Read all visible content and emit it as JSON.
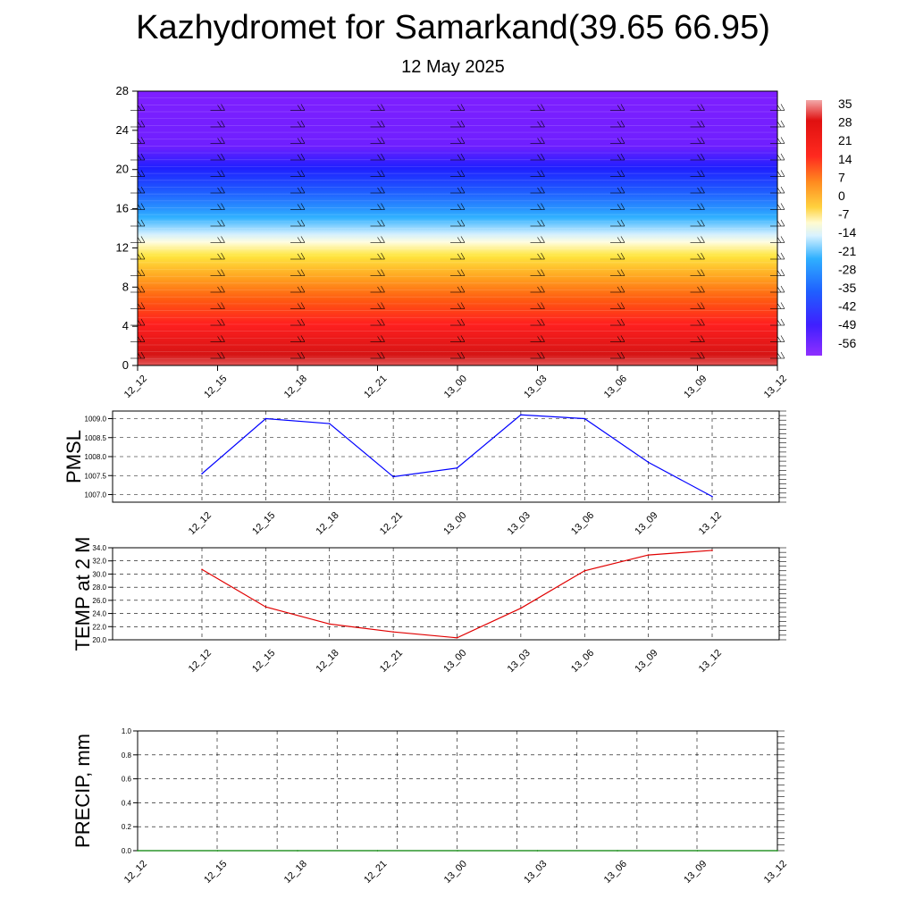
{
  "header": {
    "title": "Kazhydromet for Samarkand(39.65 66.95)",
    "subtitle": "12 May 2025"
  },
  "chart_data": [
    {
      "type": "heatmap",
      "description_field": "temperature cross-section with wind barbs",
      "x_categories": [
        "12_12",
        "12_15",
        "12_18",
        "12_21",
        "13_00",
        "13_03",
        "13_06",
        "13_09",
        "13_12"
      ],
      "y_ticks": [
        "0",
        "4",
        "8",
        "12",
        "16",
        "20",
        "24",
        "28"
      ],
      "ylim": [
        0,
        28
      ],
      "colorbar_labels": [
        "35",
        "28",
        "21",
        "14",
        "7",
        "0",
        "-7",
        "-14",
        "-21",
        "-28",
        "-35",
        "-42",
        "-49",
        "-56"
      ],
      "colorbar_range": [
        -56,
        35
      ],
      "colors": {
        "violet": "#7f1fff",
        "blue": "#1f1fff",
        "lightblue": "#2fb0ff",
        "white": "#f4f4f4",
        "yellow": "#ffe63f",
        "orange": "#ffa21f",
        "red": "#ff1f1f",
        "darkred": "#d80d0d",
        "pink": "#f49a9a"
      }
    },
    {
      "type": "line",
      "ylabel": "PMSL",
      "x_categories": [
        "12_12",
        "12_15",
        "12_18",
        "12_21",
        "13_00",
        "13_03",
        "13_06",
        "13_09",
        "13_12"
      ],
      "y_ticks": [
        "1007.0",
        "1007.5",
        "1008.0",
        "1008.5",
        "1009.0"
      ],
      "ylim": [
        1006.8,
        1009.2
      ],
      "values": [
        1007.55,
        1009.0,
        1008.87,
        1007.47,
        1007.7,
        1009.1,
        1009.0,
        1007.85,
        1006.95
      ],
      "line_color": "#0000ff"
    },
    {
      "type": "line",
      "ylabel": "TEMP at 2 M",
      "x_categories": [
        "12_12",
        "12_15",
        "12_18",
        "12_21",
        "13_00",
        "13_03",
        "13_06",
        "13_09",
        "13_12"
      ],
      "y_ticks": [
        "20.0",
        "22.0",
        "24.0",
        "26.0",
        "28.0",
        "30.0",
        "32.0",
        "34.0"
      ],
      "ylim": [
        20.0,
        34.0
      ],
      "values": [
        30.7,
        25.0,
        22.4,
        21.2,
        20.3,
        24.8,
        30.5,
        32.9,
        33.6
      ],
      "line_color": "#e00000"
    },
    {
      "type": "line",
      "ylabel": "PRECIP, mm",
      "x_categories": [
        "12_12",
        "12_15",
        "12_18",
        "12_21",
        "13_00",
        "13_03",
        "13_06",
        "13_09",
        "13_12"
      ],
      "y_ticks": [
        "0.0",
        "0.2",
        "0.4",
        "0.6",
        "0.8",
        "1.0"
      ],
      "ylim": [
        0.0,
        1.0
      ],
      "values": [
        0,
        0,
        0,
        0,
        0,
        0,
        0,
        0,
        0
      ],
      "line_color": "#008000"
    }
  ]
}
